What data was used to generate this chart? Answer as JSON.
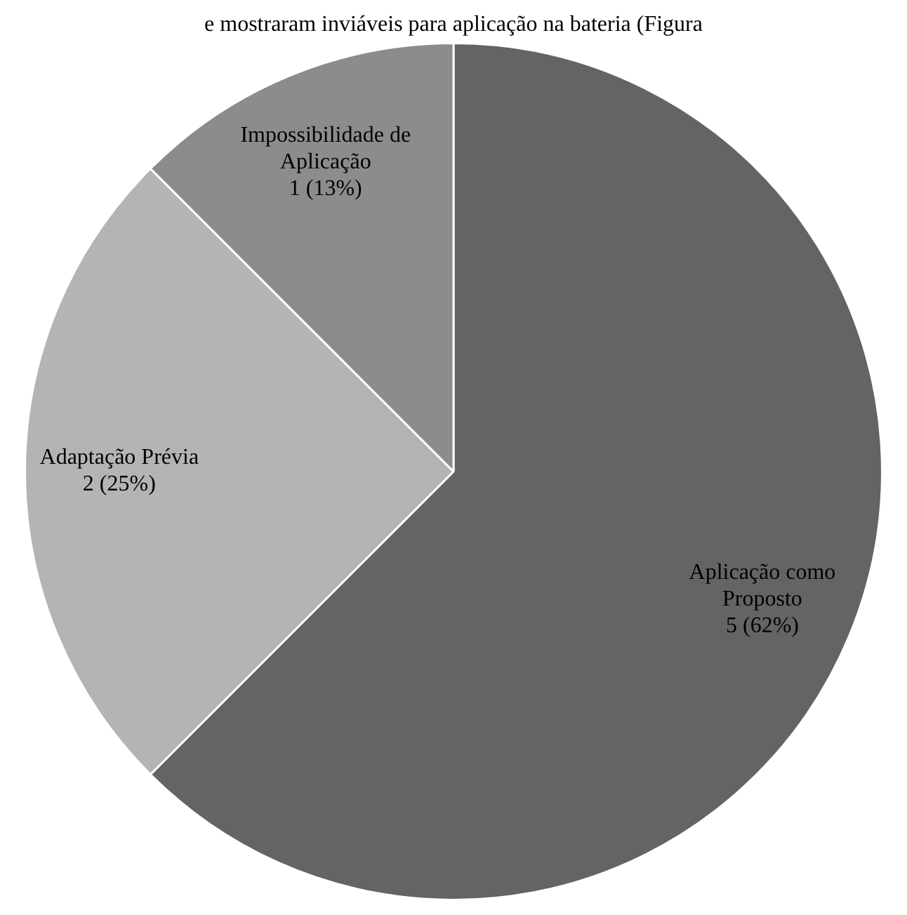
{
  "chart_data": {
    "type": "pie",
    "annotations": [
      "e mostraram inviáveis para aplicação na bateria (Figura"
    ],
    "categories": [
      "Aplicação como Proposto",
      "Adaptação Prévia",
      "Impossibilidade de Aplicação"
    ],
    "values": [
      5,
      2,
      1
    ],
    "value_labels": [
      "5 (62%)",
      "2 (25%)",
      "1 (13%)"
    ],
    "colors": [
      "#646464",
      "#b4b4b4",
      "#8c8c8c"
    ],
    "legend": false
  }
}
